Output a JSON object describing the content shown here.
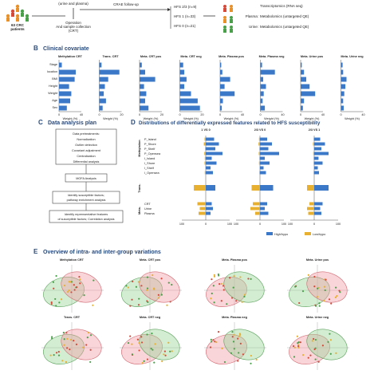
{
  "panelA": {
    "patients_text": [
      "63 CRC",
      "patients"
    ],
    "sample_text": "(urine and plasma)",
    "operation_text": [
      "Operation",
      "And sample collection",
      "(CRT)"
    ],
    "followup_text": "CRAE follow-up",
    "groups": [
      "HFS 2/3 (n=9)",
      "HFS 1 (n=33)",
      "HFS 0 (n=21)"
    ],
    "omics": [
      {
        "source": "",
        "label": "Transcriptomics (RNA seq)"
      },
      {
        "source": "Plasma:",
        "label": "Metabolomics (untargeted QE)"
      },
      {
        "source": "Urine:",
        "label": "Metabolomics (untargeted QE)"
      }
    ]
  },
  "panelB": {
    "letter": "B",
    "title": "Clinical covariate",
    "row_labels": [
      "Stage",
      "location",
      "BMI",
      "Height",
      "Weight",
      "Age",
      "Sex"
    ],
    "xlabel": "Weight (%)",
    "charts": [
      {
        "title": "Methylation CRT",
        "ticks": [
          "0",
          "40"
        ],
        "values": [
          5,
          30,
          28,
          18,
          22,
          20,
          14
        ],
        "max": 40
      },
      {
        "title": "Trans. CRT",
        "ticks": [
          "0",
          "20"
        ],
        "values": [
          2,
          18,
          8,
          5,
          4,
          6,
          3
        ],
        "max": 20
      },
      {
        "title": "Meta. CRT pos",
        "ticks": [
          "0",
          "20"
        ],
        "values": [
          2,
          5,
          14,
          4,
          6,
          5,
          8
        ],
        "max": 20
      },
      {
        "title": "Meta. CRT neg",
        "ticks": [
          "0",
          "20"
        ],
        "values": [
          3,
          4,
          6,
          4,
          10,
          16,
          18
        ],
        "max": 20
      },
      {
        "title": "Meta. Plasma pos",
        "ticks": [
          "0",
          "40"
        ],
        "values": [
          2,
          4,
          18,
          8,
          26,
          5,
          3
        ],
        "max": 40
      },
      {
        "title": "Meta. Plasma neg",
        "ticks": [
          "0",
          "40"
        ],
        "values": [
          3,
          26,
          5,
          10,
          6,
          4,
          8
        ],
        "max": 40
      },
      {
        "title": "Meta. Urine pos",
        "ticks": [
          "0",
          "40"
        ],
        "values": [
          2,
          6,
          10,
          16,
          26,
          6,
          4
        ],
        "max": 40
      },
      {
        "title": "Meta. Urine neg",
        "ticks": [
          "0",
          "40"
        ],
        "values": [
          3,
          4,
          10,
          8,
          6,
          4,
          5
        ],
        "max": 40
      }
    ]
  },
  "panelC": {
    "letter": "C",
    "title": "Data analysis plan",
    "box1": [
      "Data pretreatments:",
      "Normalization",
      "Outlier detection",
      "Covariant adjustment",
      "Centralization",
      "Differential analysis"
    ],
    "box2": "MOFA Analysis",
    "box3": [
      "Identify susceptible factors;",
      "pathway enrichment analysis"
    ],
    "box4": [
      "Identify reprensentative features",
      "of susceptible factors; Correlation analysis"
    ]
  },
  "panelD": {
    "letter": "D",
    "title": "Distributions of differentially expressed features related to HFS susceptibility",
    "columns": [
      "1 VS 0",
      "2/3 VS 0",
      "2/3 VS 1"
    ],
    "row_groups": [
      "Methylation",
      "Trans.",
      "Meta."
    ],
    "meth_rows": [
      "P_Island",
      "P_Shore",
      "P_Shelf",
      "P_Opensea",
      "I_Island",
      "I_Shore",
      "I_Shelf",
      "I_Opensea"
    ],
    "meta_rows": [
      "CRT",
      "Urine",
      "Plasma"
    ],
    "ticks": [
      "100",
      "0",
      "100"
    ],
    "legend": [
      "High/hypo",
      "Low/hypo"
    ],
    "colors": {
      "high": "#3b78c8",
      "low": "#e8b030"
    },
    "values": [
      {
        "meth_high": [
          35,
          55,
          40,
          70,
          25,
          45,
          20,
          30
        ],
        "meth_low": [
          5,
          8,
          3,
          6,
          4,
          5,
          2,
          4
        ],
        "trans_high": 40,
        "trans_low": 50,
        "meta_high": [
          25,
          30,
          20
        ],
        "meta_low": [
          35,
          25,
          30
        ]
      },
      {
        "meth_high": [
          30,
          50,
          35,
          80,
          20,
          40,
          15,
          25
        ],
        "meth_low": [
          4,
          6,
          3,
          5,
          3,
          4,
          2,
          3
        ],
        "trans_high": 55,
        "trans_low": 35,
        "meta_high": [
          30,
          20,
          35
        ],
        "meta_low": [
          30,
          40,
          20
        ]
      },
      {
        "meth_high": [
          25,
          45,
          30,
          60,
          18,
          35,
          15,
          20
        ],
        "meth_low": [
          3,
          5,
          2,
          4,
          3,
          3,
          2,
          3
        ],
        "trans_high": 60,
        "trans_low": 30,
        "meta_high": [
          35,
          25,
          30
        ],
        "meta_low": [
          20,
          30,
          25
        ]
      }
    ]
  },
  "panelE": {
    "letter": "E",
    "title": "Overview of intra- and inter-group variations",
    "plots": [
      {
        "title": "Methylation CRT",
        "ellipses": [
          "green",
          "red"
        ]
      },
      {
        "title": "Meta. CRT pos",
        "ellipses": [
          "green",
          "red"
        ]
      },
      {
        "title": "Meta. Plasma pos",
        "ellipses": [
          "red",
          "green"
        ]
      },
      {
        "title": "Meta. Urine pos",
        "ellipses": [
          "green",
          "red"
        ]
      },
      {
        "title": "Trans. CRT",
        "ellipses": [
          "green",
          "red"
        ]
      },
      {
        "title": "Meta. CRT neg",
        "ellipses": [
          "red",
          "green"
        ]
      },
      {
        "title": "Meta. Plasma neg",
        "ellipses": [
          "red",
          "green"
        ]
      },
      {
        "title": "Meta. Urine neg",
        "ellipses": [
          "red",
          "green"
        ]
      }
    ]
  }
}
